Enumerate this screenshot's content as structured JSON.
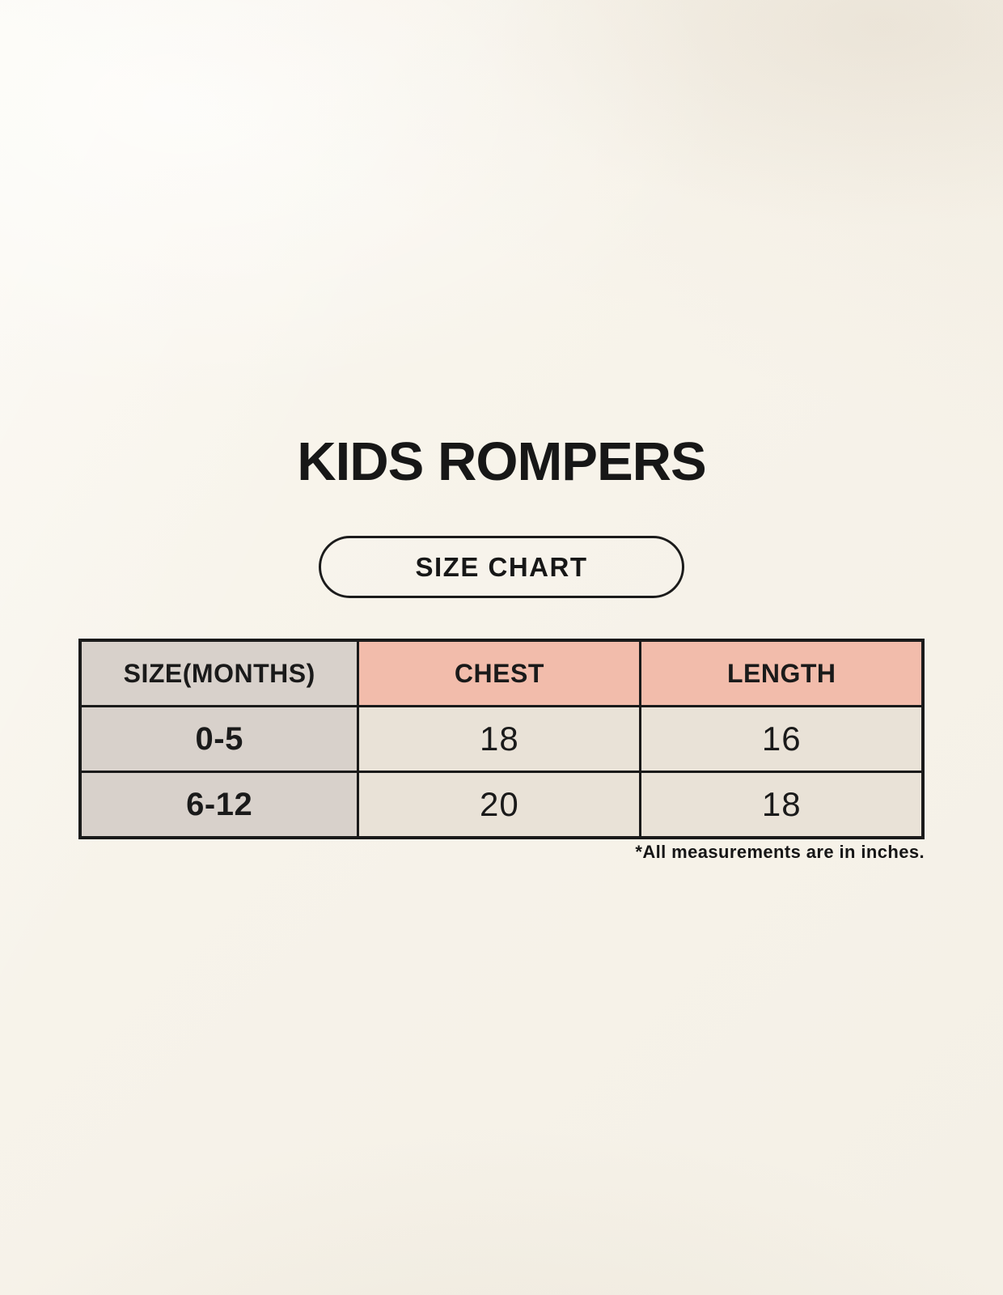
{
  "header": {
    "title": "KIDS ROMPERS",
    "badge_label": "SIZE CHART"
  },
  "footnote": {
    "text": "*All measurements are in inches."
  },
  "chart_data": {
    "type": "table",
    "title": "KIDS ROMPERS",
    "subtitle": "SIZE CHART",
    "columns": [
      "SIZE(MONTHS)",
      "CHEST",
      "LENGTH"
    ],
    "rows": [
      [
        "0-5",
        "18",
        "16"
      ],
      [
        "6-12",
        "20",
        "18"
      ]
    ],
    "units": "inches",
    "note": "*All measurements are in inches.",
    "layout_hints": {
      "first_column_style": "taupe header column",
      "measure_header_style": "salmon pink",
      "data_cell_style": "cream",
      "grid": "heavy black borders"
    }
  },
  "colors": {
    "background_cream": "#f7f3ea",
    "header_pink": "#f2bcab",
    "size_column_taupe": "#d8d1cb",
    "data_cell_cream": "#e9e2d7",
    "table_border": "#1a1a1a",
    "text": "#171717"
  }
}
